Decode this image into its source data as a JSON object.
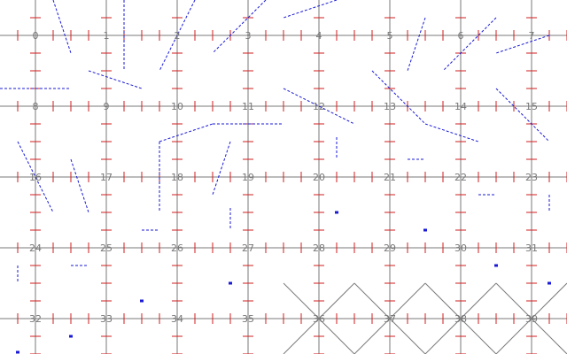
{
  "colors": {
    "background": "#ffffff",
    "grid_line": "#7a7a7a",
    "tick": "#d21e1e",
    "dashed_segment": "#1a1ad6",
    "dot": "#1a1ad6",
    "label": "#777777",
    "diagonal": "#7a7a7a"
  },
  "grid": {
    "columns": 8,
    "rows": 5
  },
  "cells": [
    {
      "label": "0"
    },
    {
      "label": "1"
    },
    {
      "label": "2"
    },
    {
      "label": "3"
    },
    {
      "label": "4"
    },
    {
      "label": "5"
    },
    {
      "label": "6"
    },
    {
      "label": "7"
    },
    {
      "label": "8"
    },
    {
      "label": "9"
    },
    {
      "label": "10"
    },
    {
      "label": "11"
    },
    {
      "label": "12"
    },
    {
      "label": "13"
    },
    {
      "label": "14"
    },
    {
      "label": "15"
    },
    {
      "label": "16"
    },
    {
      "label": "17"
    },
    {
      "label": "18"
    },
    {
      "label": "19"
    },
    {
      "label": "20"
    },
    {
      "label": "21"
    },
    {
      "label": "22"
    },
    {
      "label": "23"
    },
    {
      "label": "24"
    },
    {
      "label": "25"
    },
    {
      "label": "26"
    },
    {
      "label": "27"
    },
    {
      "label": "28"
    },
    {
      "label": "29"
    },
    {
      "label": "30"
    },
    {
      "label": "31"
    },
    {
      "label": "32"
    },
    {
      "label": "33"
    },
    {
      "label": "34"
    },
    {
      "label": "35"
    },
    {
      "label": "36",
      "crossed": true
    },
    {
      "label": "37",
      "crossed": true
    },
    {
      "label": "38",
      "crossed": true
    },
    {
      "label": "39",
      "crossed": true
    }
  ]
}
